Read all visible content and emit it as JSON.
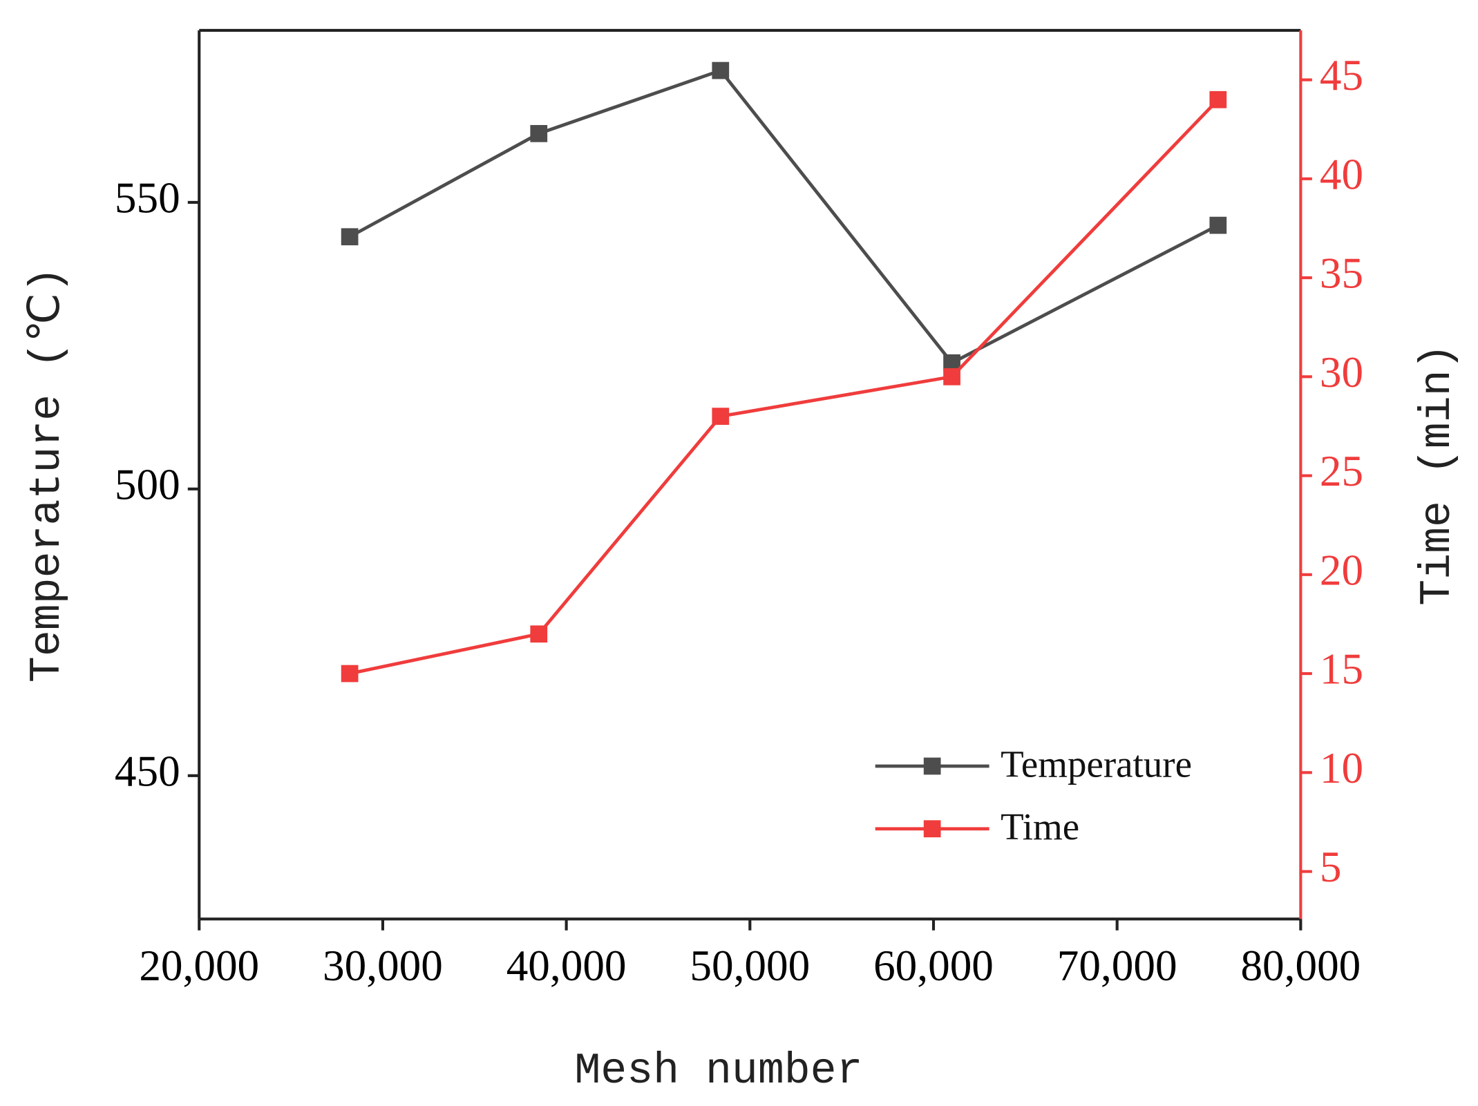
{
  "chart_data": {
    "type": "line",
    "x_label": "Mesh number",
    "y_label": "Temperature (℃)",
    "y2_label": "Time (min)",
    "x": [
      28200,
      38500,
      48400,
      61000,
      75500
    ],
    "series": [
      {
        "name": "Temperature",
        "color": "#4d4d4d",
        "values": [
          544,
          562,
          573,
          522,
          546
        ]
      },
      {
        "name": "Time",
        "color": "#f03c3c",
        "axis": "y2",
        "values": [
          15,
          17,
          28,
          30,
          44
        ]
      }
    ],
    "xlim": [
      20000,
      80000
    ],
    "xticks": [
      {
        "value": 20000,
        "label": "20,000"
      },
      {
        "value": 30000,
        "label": "30,000"
      },
      {
        "value": 40000,
        "label": "40,000"
      },
      {
        "value": 50000,
        "label": "50,000"
      },
      {
        "value": 60000,
        "label": "60,000"
      },
      {
        "value": 70000,
        "label": "70,000"
      },
      {
        "value": 80000,
        "label": "80,000"
      }
    ],
    "ylim": [
      425,
      580
    ],
    "yticks": [
      450,
      500,
      550
    ],
    "y2lim": [
      2.6,
      47.5
    ],
    "y2ticks": [
      5,
      10,
      15,
      20,
      25,
      30,
      35,
      40,
      45
    ],
    "legend": "lower right"
  }
}
